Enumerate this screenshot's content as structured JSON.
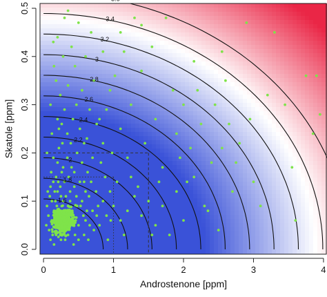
{
  "chart_data": {
    "type": "scatter",
    "xlabel": "Androstenone [ppm]",
    "ylabel": "Skatole [ppm]",
    "xlim": [
      -0.05,
      4.05
    ],
    "ylim": [
      -0.01,
      0.51
    ],
    "x_ticks": [
      "0",
      "1",
      "2",
      "3",
      "4"
    ],
    "y_ticks": [
      "0.0",
      "0.1",
      "0.2",
      "0.3",
      "0.4",
      "0.5"
    ],
    "background": "blue-white-red gradient increasing with distance from origin",
    "colors": {
      "low": "#3a52d8",
      "mid": "#ffffff",
      "high": "#ea2646",
      "points": "#7fe34a",
      "lines": "#111111"
    },
    "contour_labels": [
      "1.6",
      "1.8",
      "2",
      "2.2",
      "2.4",
      "2.6",
      "2.8",
      "3",
      "3.2",
      "3.4",
      "3.6"
    ],
    "reference_boxes": [
      {
        "x": 1.0,
        "y": 0.15,
        "style": "dotted"
      },
      {
        "x": 1.5,
        "y": 0.2,
        "style": "dashed"
      }
    ],
    "series": [
      {
        "points": [
          [
            0.18,
            0.03
          ],
          [
            0.22,
            0.05
          ],
          [
            0.3,
            0.04
          ],
          [
            0.12,
            0.06
          ],
          [
            0.4,
            0.07
          ],
          [
            0.25,
            0.02
          ],
          [
            0.35,
            0.09
          ],
          [
            0.15,
            0.08
          ],
          [
            0.5,
            0.05
          ],
          [
            0.28,
            0.1
          ],
          [
            0.08,
            0.04
          ],
          [
            0.45,
            0.03
          ],
          [
            0.2,
            0.12
          ],
          [
            0.6,
            0.06
          ],
          [
            0.33,
            0.06
          ],
          [
            0.1,
            0.02
          ],
          [
            0.55,
            0.1
          ],
          [
            0.38,
            0.12
          ],
          [
            0.27,
            0.07
          ],
          [
            0.7,
            0.08
          ],
          [
            0.05,
            0.09
          ],
          [
            0.17,
            0.1
          ],
          [
            0.42,
            0.05
          ],
          [
            0.24,
            0.13
          ],
          [
            0.8,
            0.05
          ],
          [
            0.14,
            0.14
          ],
          [
            0.31,
            0.02
          ],
          [
            0.65,
            0.11
          ],
          [
            0.48,
            0.09
          ],
          [
            0.21,
            0.08
          ],
          [
            0.09,
            0.11
          ],
          [
            0.36,
            0.15
          ],
          [
            0.58,
            0.03
          ],
          [
            0.26,
            0.16
          ],
          [
            0.9,
            0.07
          ],
          [
            0.19,
            0.05
          ],
          [
            0.44,
            0.13
          ],
          [
            0.13,
            0.03
          ],
          [
            0.75,
            0.12
          ],
          [
            0.32,
            0.11
          ],
          [
            0.62,
            0.08
          ],
          [
            0.07,
            0.07
          ],
          [
            0.52,
            0.14
          ],
          [
            0.23,
            0.06
          ],
          [
            1.0,
            0.09
          ],
          [
            0.4,
            0.17
          ],
          [
            0.16,
            0.12
          ],
          [
            0.85,
            0.1
          ],
          [
            0.29,
            0.04
          ],
          [
            0.11,
            0.16
          ],
          [
            0.68,
            0.14
          ],
          [
            0.35,
            0.03
          ],
          [
            0.47,
            0.11
          ],
          [
            0.2,
            0.18
          ],
          [
            1.1,
            0.06
          ],
          [
            0.57,
            0.07
          ],
          [
            0.25,
            0.11
          ],
          [
            0.04,
            0.05
          ],
          [
            0.78,
            0.09
          ],
          [
            0.34,
            0.19
          ],
          [
            0.95,
            0.12
          ],
          [
            0.18,
            0.15
          ],
          [
            0.41,
            0.08
          ],
          [
            1.2,
            0.08
          ],
          [
            0.63,
            0.16
          ],
          [
            0.12,
            0.1
          ],
          [
            0.5,
            0.02
          ],
          [
            0.3,
            0.14
          ],
          [
            1.3,
            0.11
          ],
          [
            0.22,
            0.21
          ],
          [
            0.72,
            0.04
          ],
          [
            0.44,
            0.16
          ],
          [
            0.15,
            0.01
          ],
          [
            0.88,
            0.15
          ],
          [
            0.37,
            0.05
          ],
          [
            1.05,
            0.14
          ],
          [
            0.27,
            0.22
          ],
          [
            0.55,
            0.18
          ],
          [
            0.1,
            0.13
          ],
          [
            0.66,
            0.05
          ],
          [
            0.32,
            0.08
          ],
          [
            1.4,
            0.07
          ],
          [
            0.48,
            0.2
          ],
          [
            0.19,
            0.09
          ],
          [
            0.82,
            0.18
          ],
          [
            0.24,
            0.03
          ],
          [
            1.15,
            0.03
          ],
          [
            0.6,
            0.12
          ],
          [
            0.39,
            0.22
          ],
          [
            0.14,
            0.19
          ],
          [
            0.96,
            0.06
          ],
          [
            0.53,
            0.09
          ],
          [
            0.28,
            0.17
          ],
          [
            1.5,
            0.1
          ],
          [
            0.7,
            0.19
          ],
          [
            0.06,
            0.12
          ],
          [
            0.43,
            0.01
          ],
          [
            0.21,
            0.14
          ],
          [
            1.25,
            0.15
          ],
          [
            0.34,
            0.24
          ],
          [
            0.58,
            0.22
          ],
          [
            0.16,
            0.06
          ],
          [
            0.92,
            0.02
          ],
          [
            0.46,
            0.06
          ],
          [
            0.12,
            0.24
          ],
          [
            1.6,
            0.05
          ],
          [
            0.38,
            0.1
          ],
          [
            0.76,
            0.07
          ],
          [
            0.26,
            0.26
          ],
          [
            0.52,
            0.25
          ],
          [
            1.35,
            0.13
          ],
          [
            0.2,
            0.27
          ],
          [
            0.85,
            0.22
          ],
          [
            0.64,
            0.02
          ],
          [
            0.3,
            0.29
          ],
          [
            1.7,
            0.09
          ],
          [
            0.1,
            0.3
          ],
          [
            0.42,
            0.27
          ],
          [
            1.8,
            0.03
          ],
          [
            0.98,
            0.2
          ],
          [
            0.24,
            0.32
          ],
          [
            0.66,
            0.29
          ],
          [
            1.1,
            0.25
          ],
          [
            0.35,
            0.34
          ],
          [
            1.9,
            0.12
          ],
          [
            0.18,
            0.35
          ],
          [
            0.55,
            0.33
          ],
          [
            0.8,
            0.27
          ],
          [
            0.15,
            0.38
          ],
          [
            0.45,
            0.38
          ],
          [
            1.45,
            0.22
          ],
          [
            0.28,
            0.4
          ],
          [
            2.0,
            0.06
          ],
          [
            0.72,
            0.35
          ],
          [
            0.4,
            0.42
          ],
          [
            1.25,
            0.3
          ],
          [
            0.95,
            0.33
          ],
          [
            0.6,
            0.4
          ],
          [
            0.2,
            0.44
          ],
          [
            1.6,
            0.27
          ],
          [
            0.85,
            0.41
          ],
          [
            2.15,
            0.15
          ],
          [
            0.5,
            0.47
          ],
          [
            1.4,
            0.37
          ],
          [
            0.3,
            0.48
          ],
          [
            1.1,
            0.45
          ],
          [
            0.35,
            0.495
          ],
          [
            1.4,
            0.465
          ],
          [
            1.7,
            0.17
          ],
          [
            2.3,
            0.09
          ],
          [
            1.9,
            0.24
          ],
          [
            2.1,
            0.21
          ],
          [
            1.55,
            0.42
          ],
          [
            1.85,
            0.33
          ],
          [
            2.5,
            0.04
          ],
          [
            2.0,
            0.3
          ],
          [
            2.4,
            0.18
          ],
          [
            1.3,
            0.48
          ],
          [
            2.25,
            0.26
          ],
          [
            2.7,
            0.12
          ],
          [
            2.6,
            0.35
          ],
          [
            2.45,
            0.3
          ],
          [
            2.8,
            0.22
          ],
          [
            2.15,
            0.39
          ],
          [
            2.95,
            0.27
          ],
          [
            3.1,
            0.09
          ],
          [
            2.55,
            0.41
          ],
          [
            3.2,
            0.32
          ],
          [
            3.55,
            0.17
          ],
          [
            3.3,
            0.45
          ],
          [
            2.75,
            0.18
          ],
          [
            3.45,
            0.3
          ],
          [
            3.85,
            0.24
          ],
          [
            3.9,
            0.36
          ],
          [
            3.6,
            0.06
          ],
          [
            3.75,
            0.36
          ],
          [
            3.95,
            0.28
          ],
          [
            2.9,
            0.47
          ],
          [
            1.75,
            0.48
          ],
          [
            0.05,
            0.2
          ],
          [
            0.22,
            0.25
          ],
          [
            0.47,
            0.3
          ],
          [
            0.62,
            0.23
          ],
          [
            0.76,
            0.26
          ],
          [
            1.02,
            0.36
          ],
          [
            0.14,
            0.43
          ],
          [
            0.58,
            0.14
          ],
          [
            0.9,
            0.29
          ],
          [
            1.2,
            0.19
          ],
          [
            1.65,
            0.14
          ],
          [
            2.05,
            0.14
          ],
          [
            2.35,
            0.08
          ],
          [
            2.55,
            0.21
          ],
          [
            3.0,
            0.14
          ],
          [
            1.15,
            0.41
          ],
          [
            0.68,
            0.45
          ],
          [
            1.55,
            0.03
          ],
          [
            1.95,
            0.19
          ],
          [
            2.2,
            0.33
          ],
          [
            2.65,
            0.26
          ]
        ]
      }
    ]
  }
}
